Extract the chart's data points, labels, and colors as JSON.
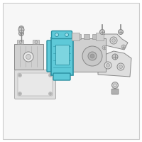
{
  "bg_color": "#f7f7f7",
  "border_color": "#cccccc",
  "highlight_fill": "#5ec9d8",
  "highlight_edge": "#2a8fa0",
  "part_fill": "#d0d0d0",
  "part_edge": "#888888",
  "part_edge_dark": "#666666",
  "screw_fill": "#c8c8c8",
  "screw_edge": "#888888",
  "plate_fill": "#dedede",
  "plate_edge": "#aaaaaa",
  "fig_bg": "#ffffff",
  "lw_main": 0.7,
  "lw_thin": 0.4
}
